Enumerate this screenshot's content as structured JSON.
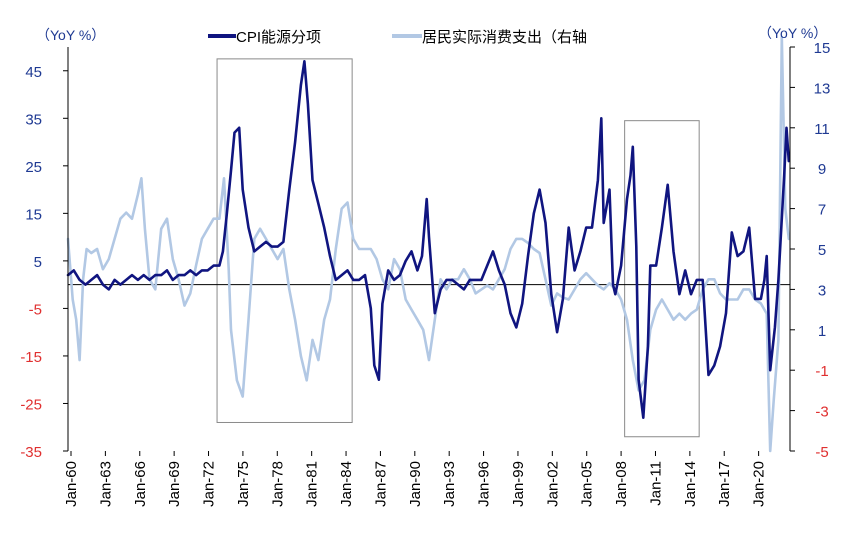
{
  "chart_data": {
    "type": "line",
    "title": "",
    "left_axis_unit": "（YoY %）",
    "right_axis_unit": "（YoY %）",
    "x_ticks": [
      "Jan-60",
      "Jan-63",
      "Jan-66",
      "Jan-69",
      "Jan-72",
      "Jan-75",
      "Jan-78",
      "Jan-81",
      "Jan-84",
      "Jan-87",
      "Jan-90",
      "Jan-93",
      "Jan-96",
      "Jan-99",
      "Jan-02",
      "Jan-05",
      "Jan-08",
      "Jan-11",
      "Jan-14",
      "Jan-17",
      "Jan-20"
    ],
    "x_range": [
      1960.0,
      2022.0
    ],
    "left_ylim": [
      -35,
      50
    ],
    "left_ticks": [
      {
        "v": 45,
        "label": "45",
        "color": "#1f3a93"
      },
      {
        "v": 35,
        "label": "35",
        "color": "#1f3a93"
      },
      {
        "v": 25,
        "label": "25",
        "color": "#1f3a93"
      },
      {
        "v": 15,
        "label": "15",
        "color": "#1f3a93"
      },
      {
        "v": 5,
        "label": "5",
        "color": "#1f3a93"
      },
      {
        "v": -5,
        "label": "-5",
        "color": "#e03030"
      },
      {
        "v": -15,
        "label": "-15",
        "color": "#e03030"
      },
      {
        "v": -25,
        "label": "-25",
        "color": "#e03030"
      },
      {
        "v": -35,
        "label": "-35",
        "color": "#e03030"
      }
    ],
    "right_ylim": [
      -5,
      15
    ],
    "right_ticks": [
      {
        "v": 15,
        "label": "15",
        "color": "#1f3a93"
      },
      {
        "v": 13,
        "label": "13",
        "color": "#1f3a93"
      },
      {
        "v": 11,
        "label": "11",
        "color": "#1f3a93"
      },
      {
        "v": 9,
        "label": "9",
        "color": "#1f3a93"
      },
      {
        "v": 7,
        "label": "7",
        "color": "#1f3a93"
      },
      {
        "v": 5,
        "label": "5",
        "color": "#1f3a93"
      },
      {
        "v": 3,
        "label": "3",
        "color": "#1f3a93"
      },
      {
        "v": 1,
        "label": "1",
        "color": "#1f3a93"
      },
      {
        "v": -1,
        "label": "-1",
        "color": "#e03030"
      },
      {
        "v": -3,
        "label": "-3",
        "color": "#e03030"
      },
      {
        "v": -5,
        "label": "-5",
        "color": "#e03030"
      }
    ],
    "highlight_boxes": [
      {
        "x0": 1972.8,
        "x1": 1984.4,
        "y_top": 47.5,
        "y_bottom": -29
      },
      {
        "x0": 2007.8,
        "x1": 2014.2,
        "y_top": 34.5,
        "y_bottom": -32
      }
    ],
    "series": [
      {
        "name": "CPI能源分项",
        "axis": "left",
        "color": "#101580",
        "width": 2.6,
        "points": [
          [
            1960.0,
            2
          ],
          [
            1960.5,
            3
          ],
          [
            1961.0,
            1
          ],
          [
            1961.5,
            0
          ],
          [
            1962.0,
            1
          ],
          [
            1962.5,
            2
          ],
          [
            1963.0,
            0
          ],
          [
            1963.5,
            -1
          ],
          [
            1964.0,
            1
          ],
          [
            1964.5,
            0
          ],
          [
            1965.0,
            1
          ],
          [
            1965.5,
            2
          ],
          [
            1966.0,
            1
          ],
          [
            1966.5,
            2
          ],
          [
            1967.0,
            1
          ],
          [
            1967.5,
            2
          ],
          [
            1968.0,
            2
          ],
          [
            1968.5,
            3
          ],
          [
            1969.0,
            1
          ],
          [
            1969.5,
            2
          ],
          [
            1970.0,
            2
          ],
          [
            1970.5,
            3
          ],
          [
            1971.0,
            2
          ],
          [
            1971.5,
            3
          ],
          [
            1972.0,
            3
          ],
          [
            1972.5,
            4
          ],
          [
            1973.0,
            4
          ],
          [
            1973.3,
            7
          ],
          [
            1973.6,
            14
          ],
          [
            1974.0,
            24
          ],
          [
            1974.3,
            32
          ],
          [
            1974.7,
            33
          ],
          [
            1975.0,
            20
          ],
          [
            1975.5,
            12
          ],
          [
            1976.0,
            7
          ],
          [
            1976.5,
            8
          ],
          [
            1977.0,
            9
          ],
          [
            1977.5,
            8
          ],
          [
            1978.0,
            8
          ],
          [
            1978.5,
            9
          ],
          [
            1979.0,
            20
          ],
          [
            1979.5,
            30
          ],
          [
            1980.0,
            42
          ],
          [
            1980.3,
            47
          ],
          [
            1980.6,
            38
          ],
          [
            1981.0,
            22
          ],
          [
            1981.5,
            17
          ],
          [
            1982.0,
            12
          ],
          [
            1982.5,
            6
          ],
          [
            1983.0,
            1
          ],
          [
            1983.5,
            2
          ],
          [
            1984.0,
            3
          ],
          [
            1984.5,
            1
          ],
          [
            1985.0,
            1
          ],
          [
            1985.5,
            2
          ],
          [
            1986.0,
            -5
          ],
          [
            1986.3,
            -17
          ],
          [
            1986.7,
            -20
          ],
          [
            1987.0,
            -4
          ],
          [
            1987.5,
            3
          ],
          [
            1988.0,
            1
          ],
          [
            1988.5,
            2
          ],
          [
            1989.0,
            5
          ],
          [
            1989.5,
            7
          ],
          [
            1990.0,
            3
          ],
          [
            1990.4,
            6
          ],
          [
            1990.8,
            18
          ],
          [
            1991.0,
            10
          ],
          [
            1991.5,
            -6
          ],
          [
            1992.0,
            -1
          ],
          [
            1992.5,
            1
          ],
          [
            1993.0,
            1
          ],
          [
            1993.5,
            0
          ],
          [
            1994.0,
            -1
          ],
          [
            1994.5,
            1
          ],
          [
            1995.0,
            1
          ],
          [
            1995.5,
            1
          ],
          [
            1996.0,
            4
          ],
          [
            1996.5,
            7
          ],
          [
            1997.0,
            3
          ],
          [
            1997.5,
            0
          ],
          [
            1998.0,
            -6
          ],
          [
            1998.5,
            -9
          ],
          [
            1999.0,
            -4
          ],
          [
            1999.5,
            6
          ],
          [
            2000.0,
            15
          ],
          [
            2000.5,
            20
          ],
          [
            2001.0,
            13
          ],
          [
            2001.5,
            -2
          ],
          [
            2002.0,
            -10
          ],
          [
            2002.5,
            -3
          ],
          [
            2003.0,
            12
          ],
          [
            2003.5,
            3
          ],
          [
            2004.0,
            7
          ],
          [
            2004.5,
            12
          ],
          [
            2005.0,
            12
          ],
          [
            2005.5,
            22
          ],
          [
            2005.8,
            35
          ],
          [
            2006.0,
            13
          ],
          [
            2006.5,
            20
          ],
          [
            2006.8,
            0
          ],
          [
            2007.0,
            -2
          ],
          [
            2007.5,
            4
          ],
          [
            2008.0,
            18
          ],
          [
            2008.3,
            23
          ],
          [
            2008.5,
            29
          ],
          [
            2008.8,
            8
          ],
          [
            2009.0,
            -20
          ],
          [
            2009.4,
            -28
          ],
          [
            2009.8,
            -13
          ],
          [
            2010.0,
            4
          ],
          [
            2010.5,
            4
          ],
          [
            2011.0,
            12
          ],
          [
            2011.5,
            21
          ],
          [
            2012.0,
            7
          ],
          [
            2012.5,
            -2
          ],
          [
            2013.0,
            3
          ],
          [
            2013.5,
            -2
          ],
          [
            2014.0,
            1
          ],
          [
            2014.5,
            1
          ],
          [
            2015.0,
            -19
          ],
          [
            2015.5,
            -17
          ],
          [
            2016.0,
            -13
          ],
          [
            2016.5,
            -6
          ],
          [
            2017.0,
            11
          ],
          [
            2017.5,
            6
          ],
          [
            2018.0,
            7
          ],
          [
            2018.5,
            12
          ],
          [
            2019.0,
            -3
          ],
          [
            2019.5,
            -3
          ],
          [
            2019.8,
            1
          ],
          [
            2020.0,
            6
          ],
          [
            2020.3,
            -18
          ],
          [
            2020.7,
            -9
          ],
          [
            2021.0,
            1
          ],
          [
            2021.5,
            23
          ],
          [
            2021.7,
            33
          ],
          [
            2021.9,
            26
          ]
        ]
      },
      {
        "name": "居民实际消费支出（右轴",
        "axis": "right",
        "color": "#b2c8e4",
        "width": 2.6,
        "points": [
          [
            1960.0,
            5.5
          ],
          [
            1960.4,
            2.5
          ],
          [
            1960.7,
            1.5
          ],
          [
            1961.0,
            -0.5
          ],
          [
            1961.3,
            3.5
          ],
          [
            1961.6,
            5.0
          ],
          [
            1962.0,
            4.8
          ],
          [
            1962.5,
            5.0
          ],
          [
            1963.0,
            4.0
          ],
          [
            1963.5,
            4.5
          ],
          [
            1964.0,
            5.5
          ],
          [
            1964.5,
            6.5
          ],
          [
            1965.0,
            6.8
          ],
          [
            1965.5,
            6.5
          ],
          [
            1966.0,
            7.7
          ],
          [
            1966.3,
            8.5
          ],
          [
            1966.6,
            6.0
          ],
          [
            1967.0,
            3.5
          ],
          [
            1967.5,
            3.0
          ],
          [
            1968.0,
            6.0
          ],
          [
            1968.5,
            6.5
          ],
          [
            1969.0,
            4.5
          ],
          [
            1969.5,
            3.5
          ],
          [
            1970.0,
            2.2
          ],
          [
            1970.5,
            2.8
          ],
          [
            1971.0,
            4.2
          ],
          [
            1971.5,
            5.5
          ],
          [
            1972.0,
            6.0
          ],
          [
            1972.5,
            6.5
          ],
          [
            1973.0,
            6.5
          ],
          [
            1973.4,
            8.5
          ],
          [
            1973.8,
            4.0
          ],
          [
            1974.0,
            1.0
          ],
          [
            1974.5,
            -1.5
          ],
          [
            1975.0,
            -2.3
          ],
          [
            1975.5,
            1.5
          ],
          [
            1976.0,
            5.5
          ],
          [
            1976.5,
            6.0
          ],
          [
            1977.0,
            5.5
          ],
          [
            1977.5,
            5.0
          ],
          [
            1978.0,
            4.5
          ],
          [
            1978.5,
            5.0
          ],
          [
            1979.0,
            3.0
          ],
          [
            1979.5,
            1.5
          ],
          [
            1980.0,
            -0.3
          ],
          [
            1980.5,
            -1.5
          ],
          [
            1981.0,
            0.5
          ],
          [
            1981.5,
            -0.5
          ],
          [
            1982.0,
            1.5
          ],
          [
            1982.5,
            2.5
          ],
          [
            1983.0,
            5.0
          ],
          [
            1983.5,
            7.0
          ],
          [
            1984.0,
            7.3
          ],
          [
            1984.5,
            5.5
          ],
          [
            1985.0,
            5.0
          ],
          [
            1985.5,
            5.0
          ],
          [
            1986.0,
            5.0
          ],
          [
            1986.5,
            4.5
          ],
          [
            1987.0,
            3.5
          ],
          [
            1987.5,
            3.0
          ],
          [
            1988.0,
            4.5
          ],
          [
            1988.5,
            4.0
          ],
          [
            1989.0,
            2.5
          ],
          [
            1989.5,
            2.0
          ],
          [
            1990.0,
            1.5
          ],
          [
            1990.5,
            1.0
          ],
          [
            1991.0,
            -0.5
          ],
          [
            1991.5,
            1.5
          ],
          [
            1992.0,
            3.5
          ],
          [
            1992.5,
            3.0
          ],
          [
            1993.0,
            3.5
          ],
          [
            1993.5,
            3.5
          ],
          [
            1994.0,
            4.0
          ],
          [
            1994.5,
            3.5
          ],
          [
            1995.0,
            2.8
          ],
          [
            1995.5,
            3.0
          ],
          [
            1996.0,
            3.2
          ],
          [
            1996.5,
            3.0
          ],
          [
            1997.0,
            3.5
          ],
          [
            1997.5,
            4.0
          ],
          [
            1998.0,
            5.0
          ],
          [
            1998.5,
            5.5
          ],
          [
            1999.0,
            5.5
          ],
          [
            1999.5,
            5.3
          ],
          [
            2000.0,
            5.0
          ],
          [
            2000.5,
            4.8
          ],
          [
            2001.0,
            3.5
          ],
          [
            2001.5,
            2.2
          ],
          [
            2002.0,
            2.8
          ],
          [
            2002.5,
            2.6
          ],
          [
            2003.0,
            2.5
          ],
          [
            2003.5,
            3.0
          ],
          [
            2004.0,
            3.5
          ],
          [
            2004.5,
            3.8
          ],
          [
            2005.0,
            3.5
          ],
          [
            2005.5,
            3.2
          ],
          [
            2006.0,
            3.0
          ],
          [
            2006.5,
            3.3
          ],
          [
            2007.0,
            3.0
          ],
          [
            2007.5,
            2.5
          ],
          [
            2008.0,
            1.5
          ],
          [
            2008.5,
            -0.5
          ],
          [
            2009.0,
            -2.0
          ],
          [
            2009.5,
            -1.5
          ],
          [
            2010.0,
            1.0
          ],
          [
            2010.5,
            2.0
          ],
          [
            2011.0,
            2.5
          ],
          [
            2011.5,
            2.0
          ],
          [
            2012.0,
            1.5
          ],
          [
            2012.5,
            1.8
          ],
          [
            2013.0,
            1.5
          ],
          [
            2013.5,
            1.8
          ],
          [
            2014.0,
            2.0
          ],
          [
            2014.5,
            3.0
          ],
          [
            2015.0,
            3.5
          ],
          [
            2015.5,
            3.5
          ],
          [
            2016.0,
            2.8
          ],
          [
            2016.5,
            2.5
          ],
          [
            2017.0,
            2.5
          ],
          [
            2017.5,
            2.5
          ],
          [
            2018.0,
            3.0
          ],
          [
            2018.5,
            3.0
          ],
          [
            2019.0,
            2.5
          ],
          [
            2019.5,
            2.3
          ],
          [
            2020.0,
            1.8
          ],
          [
            2020.3,
            -5.0
          ],
          [
            2020.6,
            -2.5
          ],
          [
            2021.0,
            0.5
          ],
          [
            2021.3,
            15.5
          ],
          [
            2021.6,
            7.0
          ],
          [
            2021.9,
            5.5
          ]
        ]
      }
    ]
  }
}
